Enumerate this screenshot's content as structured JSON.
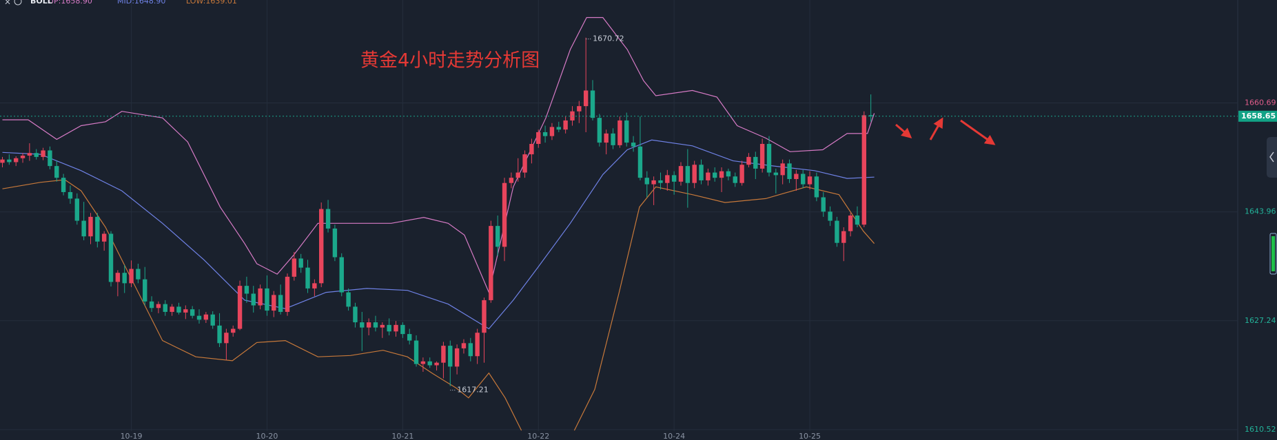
{
  "chart_data": {
    "type": "candlestick",
    "title": "黄金4小时走势分析图",
    "indicator": "BOLL",
    "categories": [
      null,
      null,
      null,
      null,
      null,
      null,
      null,
      null,
      null,
      null,
      null,
      null,
      null,
      null,
      null,
      null,
      null,
      null,
      null,
      "10-19",
      null,
      null,
      null,
      null,
      null,
      null,
      null,
      null,
      null,
      null,
      null,
      null,
      null,
      null,
      null,
      null,
      null,
      null,
      null,
      "10-20",
      null,
      null,
      null,
      null,
      null,
      null,
      null,
      null,
      null,
      null,
      null,
      null,
      null,
      null,
      null,
      null,
      null,
      null,
      null,
      "10-21",
      null,
      null,
      null,
      null,
      null,
      null,
      null,
      null,
      null,
      null,
      null,
      null,
      null,
      null,
      null,
      null,
      null,
      null,
      null,
      "10-22",
      null,
      null,
      null,
      null,
      null,
      null,
      null,
      null,
      null,
      null,
      null,
      null,
      null,
      null,
      null,
      null,
      null,
      null,
      null,
      "10-24",
      null,
      null,
      null,
      null,
      null,
      null,
      null,
      null,
      null,
      null,
      null,
      null,
      null,
      null,
      null,
      null,
      null,
      null,
      null,
      "10-25",
      null,
      null,
      null,
      null,
      null,
      null,
      null,
      null,
      null
    ],
    "ohlc": [
      [
        1651.5,
        1652.4,
        1650.8,
        1652.0
      ],
      [
        1652.0,
        1652.8,
        1651.2,
        1651.6
      ],
      [
        1651.6,
        1652.5,
        1651.0,
        1652.2
      ],
      [
        1652.2,
        1653.0,
        1651.5,
        1652.6
      ],
      [
        1652.6,
        1654.5,
        1651.8,
        1653.0
      ],
      [
        1653.0,
        1653.6,
        1652.0,
        1652.4
      ],
      [
        1652.4,
        1653.8,
        1651.9,
        1653.4
      ],
      [
        1653.4,
        1654.0,
        1650.5,
        1651.0
      ],
      [
        1651.0,
        1651.8,
        1648.6,
        1649.2
      ],
      [
        1649.2,
        1649.8,
        1646.5,
        1647.0
      ],
      [
        1647.0,
        1648.0,
        1645.2,
        1646.0
      ],
      [
        1646.0,
        1646.8,
        1642.0,
        1642.6
      ],
      [
        1642.6,
        1645.5,
        1639.6,
        1640.2
      ],
      [
        1640.2,
        1643.8,
        1639.0,
        1643.2
      ],
      [
        1643.2,
        1643.8,
        1638.5,
        1639.4
      ],
      [
        1639.4,
        1641.0,
        1638.0,
        1640.6
      ],
      [
        1640.6,
        1641.0,
        1632.5,
        1633.2
      ],
      [
        1633.2,
        1635.0,
        1631.0,
        1634.6
      ],
      [
        1634.6,
        1635.8,
        1631.5,
        1633.0
      ],
      [
        1633.0,
        1636.5,
        1632.4,
        1635.2
      ],
      [
        1635.2,
        1636.0,
        1633.0,
        1633.6
      ],
      [
        1633.6,
        1635.5,
        1629.6,
        1630.2
      ],
      [
        1630.2,
        1631.0,
        1628.6,
        1629.2
      ],
      [
        1629.2,
        1630.2,
        1628.4,
        1629.8
      ],
      [
        1629.8,
        1630.4,
        1628.0,
        1628.6
      ],
      [
        1628.6,
        1629.8,
        1628.0,
        1629.4
      ],
      [
        1629.4,
        1630.0,
        1628.2,
        1628.5
      ],
      [
        1628.5,
        1629.6,
        1627.5,
        1629.0
      ],
      [
        1629.0,
        1629.5,
        1627.6,
        1628.0
      ],
      [
        1628.0,
        1629.0,
        1626.8,
        1627.4
      ],
      [
        1627.4,
        1628.6,
        1626.9,
        1628.2
      ],
      [
        1628.2,
        1628.7,
        1626.0,
        1626.5
      ],
      [
        1626.5,
        1628.4,
        1623.2,
        1623.8
      ],
      [
        1623.8,
        1626.0,
        1621.2,
        1625.4
      ],
      [
        1625.4,
        1626.5,
        1624.8,
        1626.0
      ],
      [
        1626.0,
        1633.4,
        1625.8,
        1632.6
      ],
      [
        1632.6,
        1634.0,
        1630.0,
        1631.4
      ],
      [
        1631.4,
        1632.6,
        1628.5,
        1629.6
      ],
      [
        1629.6,
        1632.8,
        1629.0,
        1632.2
      ],
      [
        1632.2,
        1634.2,
        1628.0,
        1628.8
      ],
      [
        1628.8,
        1631.8,
        1627.8,
        1631.2
      ],
      [
        1631.2,
        1632.8,
        1628.2,
        1628.6
      ],
      [
        1628.6,
        1634.5,
        1628.0,
        1634.0
      ],
      [
        1634.0,
        1637.8,
        1633.4,
        1636.8
      ],
      [
        1636.8,
        1637.5,
        1634.6,
        1635.4
      ],
      [
        1635.4,
        1636.6,
        1631.5,
        1632.2
      ],
      [
        1632.2,
        1633.6,
        1631.0,
        1633.0
      ],
      [
        1633.0,
        1645.4,
        1632.4,
        1644.4
      ],
      [
        1644.4,
        1645.8,
        1640.8,
        1641.4
      ],
      [
        1641.4,
        1642.0,
        1636.4,
        1637.0
      ],
      [
        1637.0,
        1637.6,
        1631.0,
        1631.6
      ],
      [
        1631.6,
        1632.2,
        1628.8,
        1629.4
      ],
      [
        1629.4,
        1630.0,
        1626.2,
        1627.0
      ],
      [
        1627.0,
        1628.6,
        1622.6,
        1626.2
      ],
      [
        1626.2,
        1627.6,
        1625.0,
        1627.0
      ],
      [
        1627.0,
        1628.0,
        1625.6,
        1626.2
      ],
      [
        1626.2,
        1627.0,
        1624.6,
        1626.6
      ],
      [
        1626.6,
        1627.6,
        1625.0,
        1625.6
      ],
      [
        1625.6,
        1627.2,
        1624.8,
        1626.6
      ],
      [
        1626.6,
        1627.0,
        1624.6,
        1625.2
      ],
      [
        1625.2,
        1626.0,
        1623.6,
        1624.2
      ],
      [
        1624.2,
        1625.0,
        1620.2,
        1620.6
      ],
      [
        1620.6,
        1621.6,
        1619.4,
        1621.0
      ],
      [
        1621.0,
        1621.6,
        1620.0,
        1620.4
      ],
      [
        1620.4,
        1621.0,
        1619.6,
        1620.8
      ],
      [
        1620.8,
        1624.0,
        1618.4,
        1623.4
      ],
      [
        1623.4,
        1624.2,
        1617.21,
        1620.2
      ],
      [
        1620.2,
        1623.6,
        1619.0,
        1623.0
      ],
      [
        1623.0,
        1624.4,
        1622.2,
        1623.8
      ],
      [
        1623.8,
        1624.6,
        1621.0,
        1621.8
      ],
      [
        1621.8,
        1626.0,
        1620.6,
        1625.4
      ],
      [
        1625.4,
        1630.8,
        1620.8,
        1630.4
      ],
      [
        1630.4,
        1642.6,
        1630.0,
        1641.8
      ],
      [
        1641.8,
        1643.4,
        1637.2,
        1638.6
      ],
      [
        1638.6,
        1649.2,
        1636.4,
        1648.4
      ],
      [
        1648.4,
        1650.0,
        1647.6,
        1649.2
      ],
      [
        1649.2,
        1652.2,
        1648.6,
        1650.0
      ],
      [
        1650.0,
        1653.4,
        1649.2,
        1652.8
      ],
      [
        1652.8,
        1655.2,
        1651.4,
        1654.4
      ],
      [
        1654.4,
        1656.6,
        1653.8,
        1656.2
      ],
      [
        1656.2,
        1657.2,
        1654.6,
        1655.6
      ],
      [
        1655.6,
        1657.6,
        1655.0,
        1657.0
      ],
      [
        1657.0,
        1657.8,
        1656.2,
        1656.6
      ],
      [
        1656.6,
        1658.6,
        1656.0,
        1658.0
      ],
      [
        1658.0,
        1660.2,
        1657.2,
        1659.4
      ],
      [
        1659.4,
        1661.0,
        1657.6,
        1660.2
      ],
      [
        1660.2,
        1670.72,
        1656.2,
        1662.6
      ],
      [
        1662.6,
        1664.2,
        1658.0,
        1658.4
      ],
      [
        1658.4,
        1659.0,
        1654.0,
        1654.6
      ],
      [
        1654.6,
        1656.6,
        1652.8,
        1656.0
      ],
      [
        1656.0,
        1656.8,
        1653.6,
        1654.2
      ],
      [
        1654.2,
        1658.6,
        1653.8,
        1658.0
      ],
      [
        1658.0,
        1659.2,
        1654.0,
        1654.6
      ],
      [
        1654.6,
        1655.6,
        1653.2,
        1654.0
      ],
      [
        1654.0,
        1658.6,
        1648.8,
        1649.2
      ],
      [
        1649.2,
        1650.2,
        1646.2,
        1648.2
      ],
      [
        1648.2,
        1649.4,
        1645.0,
        1648.8
      ],
      [
        1648.8,
        1650.0,
        1647.4,
        1648.4
      ],
      [
        1648.4,
        1650.4,
        1647.2,
        1649.6
      ],
      [
        1649.6,
        1650.2,
        1646.6,
        1648.6
      ],
      [
        1648.6,
        1651.6,
        1648.0,
        1651.0
      ],
      [
        1651.0,
        1653.6,
        1644.6,
        1648.4
      ],
      [
        1648.4,
        1651.8,
        1647.6,
        1651.2
      ],
      [
        1651.2,
        1652.0,
        1648.2,
        1648.8
      ],
      [
        1648.8,
        1650.6,
        1648.0,
        1650.0
      ],
      [
        1650.0,
        1650.8,
        1648.6,
        1649.2
      ],
      [
        1649.2,
        1650.8,
        1647.0,
        1650.2
      ],
      [
        1650.2,
        1650.6,
        1648.8,
        1649.4
      ],
      [
        1649.4,
        1650.0,
        1647.8,
        1648.4
      ],
      [
        1648.4,
        1651.8,
        1648.0,
        1651.2
      ],
      [
        1651.2,
        1653.0,
        1650.8,
        1652.4
      ],
      [
        1652.4,
        1653.2,
        1649.0,
        1650.6
      ],
      [
        1650.6,
        1655.2,
        1650.0,
        1654.4
      ],
      [
        1654.4,
        1655.6,
        1649.4,
        1650.0
      ],
      [
        1650.0,
        1650.6,
        1646.8,
        1649.6
      ],
      [
        1649.6,
        1652.0,
        1648.2,
        1651.4
      ],
      [
        1651.4,
        1652.0,
        1648.4,
        1649.0
      ],
      [
        1649.0,
        1650.4,
        1647.2,
        1649.8
      ],
      [
        1649.8,
        1650.4,
        1647.6,
        1648.2
      ],
      [
        1648.2,
        1650.2,
        1647.4,
        1649.4
      ],
      [
        1649.4,
        1650.0,
        1645.6,
        1646.2
      ],
      [
        1646.2,
        1647.0,
        1643.2,
        1644.0
      ],
      [
        1644.0,
        1644.8,
        1641.8,
        1642.6
      ],
      [
        1642.6,
        1643.2,
        1638.6,
        1639.2
      ],
      [
        1639.2,
        1641.6,
        1636.4,
        1641.0
      ],
      [
        1641.0,
        1643.8,
        1640.2,
        1643.4
      ],
      [
        1643.4,
        1644.8,
        1641.6,
        1642.0
      ],
      [
        1642.0,
        1659.4,
        1641.6,
        1658.8
      ],
      [
        1658.8,
        1662.0,
        1657.8,
        1658.65
      ]
    ],
    "up_color": "#e8455c",
    "down_color": "#1ba88b",
    "bands": [
      {
        "name": "UP:1658.90",
        "color": "#d77bc6",
        "x": [
          0,
          3.8,
          8.0,
          11.6,
          15.2,
          17.6,
          23.6,
          27.3,
          32.1,
          35.7,
          37.5,
          40.5,
          42.9,
          46.5,
          51.3,
          57.3,
          62.1,
          65.7,
          68.1,
          71.7,
          75.3,
          80.1,
          83.7,
          86.1,
          88.5,
          92.1,
          94.5,
          96.3,
          101.7,
          105.3,
          108.3,
          112.5,
          116.1,
          120.9,
          124.5,
          127.5,
          128.5
        ],
        "values": [
          1658.1,
          1658.1,
          1655.1,
          1657.2,
          1657.8,
          1659.4,
          1658.4,
          1654.7,
          1644.7,
          1639.1,
          1636.0,
          1634.4,
          1637.3,
          1642.2,
          1642.2,
          1642.2,
          1643.1,
          1642.2,
          1640.4,
          1631.6,
          1647.8,
          1658.4,
          1668.9,
          1673.8,
          1673.8,
          1668.9,
          1664.1,
          1661.8,
          1662.6,
          1661.6,
          1657.2,
          1655.3,
          1653.2,
          1653.5,
          1656.0,
          1656.0,
          1659.1
        ]
      },
      {
        "name": "MID:1648.90",
        "color": "#6f82e6",
        "x": [
          0,
          5.6,
          11.6,
          17.6,
          23.6,
          29.7,
          35.7,
          41.7,
          47.7,
          53.7,
          59.7,
          65.7,
          71.7,
          75.3,
          78.9,
          83.7,
          88.5,
          92.1,
          95.7,
          101.7,
          107.7,
          113.7,
          119.7,
          124.5,
          128.5
        ],
        "values": [
          1653.1,
          1652.8,
          1650.3,
          1647.2,
          1642.2,
          1636.6,
          1630.4,
          1629.1,
          1631.6,
          1632.2,
          1631.9,
          1629.8,
          1626.0,
          1630.4,
          1635.4,
          1642.2,
          1649.7,
          1653.5,
          1655.0,
          1654.1,
          1651.8,
          1651.0,
          1650.3,
          1649.1,
          1649.3
        ]
      },
      {
        "name": "LOW:1639.01",
        "color": "#c8793a",
        "x": [
          0,
          5.6,
          9.2,
          11.6,
          15.2,
          18.8,
          23.6,
          28.5,
          33.9,
          37.5,
          41.7,
          46.5,
          51.3,
          56.1,
          59.7,
          63.3,
          66.9,
          68.7,
          71.7,
          74.1,
          76.5,
          80,
          84.3,
          87.3,
          90.9,
          93.9,
          96.3,
          101.7,
          106.5,
          112.5,
          118.5,
          123.3,
          126.9,
          128.5
        ],
        "values": [
          1647.5,
          1648.5,
          1648.9,
          1647.2,
          1641.6,
          1634.1,
          1624.2,
          1621.7,
          1621.1,
          1623.9,
          1624.2,
          1621.7,
          1621.9,
          1622.7,
          1621.7,
          1619.2,
          1616.9,
          1615.4,
          1619.2,
          1615.4,
          1610.4,
          null,
          1610.4,
          1616.7,
          1631.6,
          1644.7,
          1647.8,
          1646.6,
          1645.4,
          1646.0,
          1647.8,
          1646.6,
          1641.0,
          1639.1
        ]
      }
    ],
    "last_price": 1658.65,
    "ylim": [
      1610.3,
      1676.5
    ],
    "yticks": [
      1660.69,
      1643.96,
      1627.24,
      1610.52
    ],
    "grid": true
  }
}
